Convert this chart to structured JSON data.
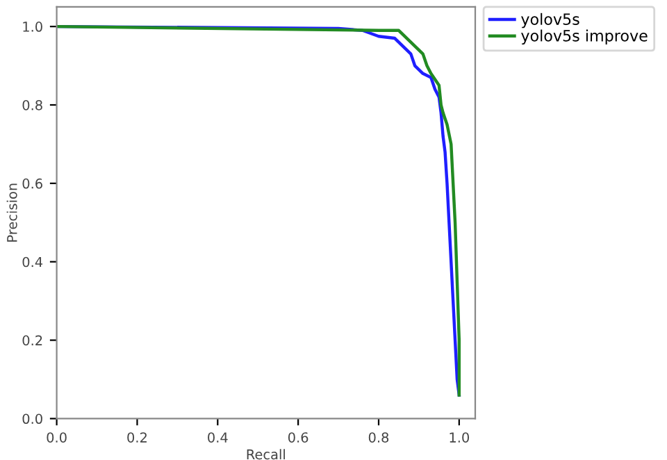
{
  "chart_data": {
    "type": "line",
    "xlabel": "Recall",
    "ylabel": "Precision",
    "xlim": [
      0,
      1.04
    ],
    "ylim": [
      0,
      1.05
    ],
    "xticks": [
      {
        "value": 0,
        "label": "0.0"
      },
      0.2,
      0.4,
      0.6,
      0.8,
      {
        "value": 1,
        "label": "1.0"
      }
    ],
    "yticks": [
      {
        "value": 0,
        "label": "0.0"
      },
      0.2,
      0.4,
      0.6,
      0.8,
      {
        "value": 1,
        "label": "1.0"
      }
    ],
    "grid": false,
    "legend": "top right",
    "marker": "none",
    "line_style": "solid",
    "series": [
      {
        "name": "yolov5s",
        "color": "#1f1fff",
        "x": [
          0,
          0.7,
          0.76,
          0.8,
          0.84,
          0.86,
          0.88,
          0.89,
          0.91,
          0.93,
          0.94,
          0.95,
          0.955,
          0.96,
          0.965,
          0.97,
          0.975,
          0.98,
          0.985,
          0.99,
          0.995,
          1.0
        ],
        "values": [
          1.0,
          0.995,
          0.99,
          0.975,
          0.97,
          0.95,
          0.93,
          0.9,
          0.88,
          0.87,
          0.84,
          0.82,
          0.78,
          0.72,
          0.68,
          0.6,
          0.5,
          0.4,
          0.3,
          0.2,
          0.1,
          0.06
        ]
      },
      {
        "name": "yolov5s improve",
        "color": "#228b22",
        "x": [
          0,
          0.8,
          0.85,
          0.87,
          0.89,
          0.91,
          0.92,
          0.93,
          0.95,
          0.955,
          0.96,
          0.97,
          0.98,
          0.985,
          0.99,
          0.995,
          1.0,
          1.0
        ],
        "values": [
          1.0,
          0.99,
          0.99,
          0.97,
          0.95,
          0.93,
          0.9,
          0.88,
          0.85,
          0.8,
          0.78,
          0.75,
          0.7,
          0.6,
          0.5,
          0.35,
          0.2,
          0.06
        ]
      }
    ]
  }
}
